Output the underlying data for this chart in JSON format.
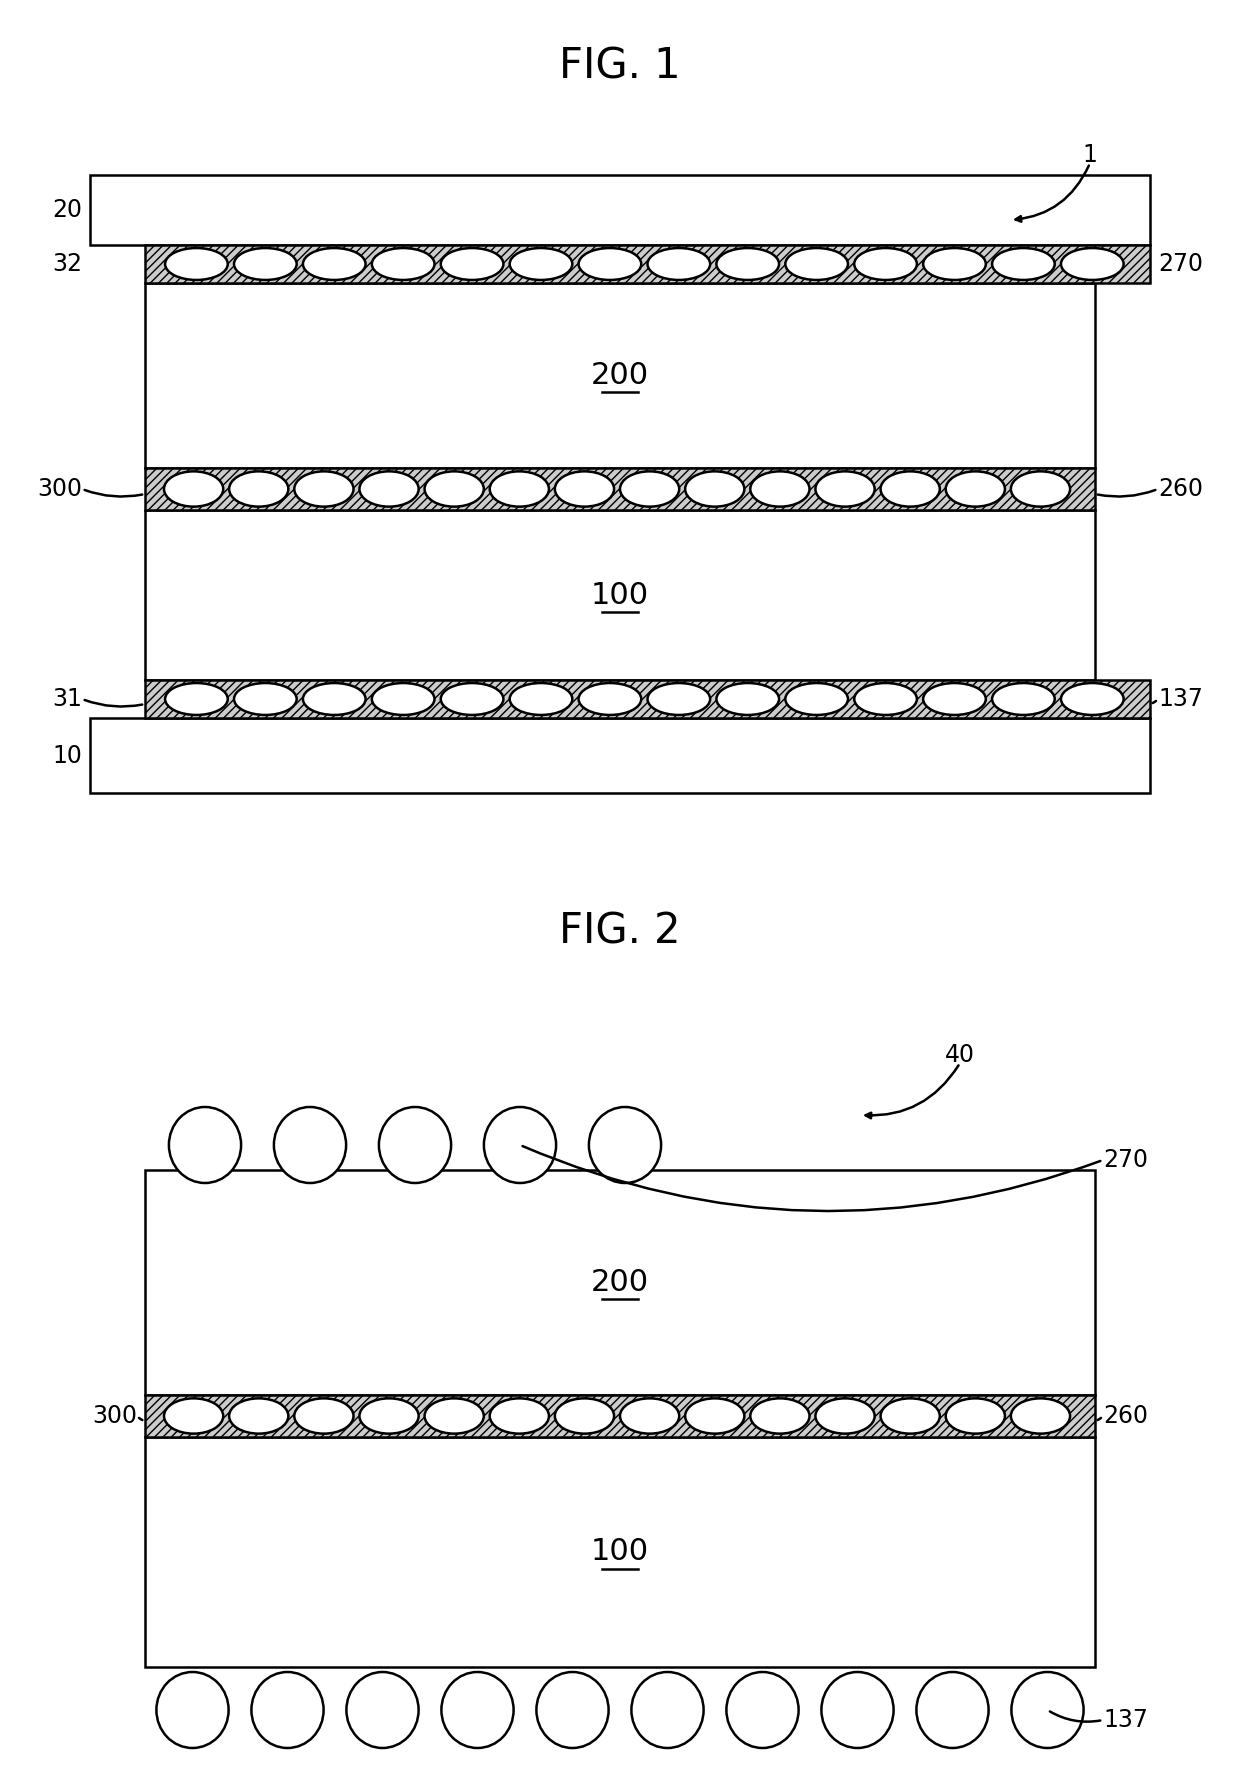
{
  "bg_color": "#ffffff",
  "line_color": "#000000",
  "lw": 1.8,
  "fig1_title": "FIG. 1",
  "fig2_title": "FIG. 2",
  "title_fontsize": 30,
  "label_fontsize": 17,
  "body_fontsize": 22
}
